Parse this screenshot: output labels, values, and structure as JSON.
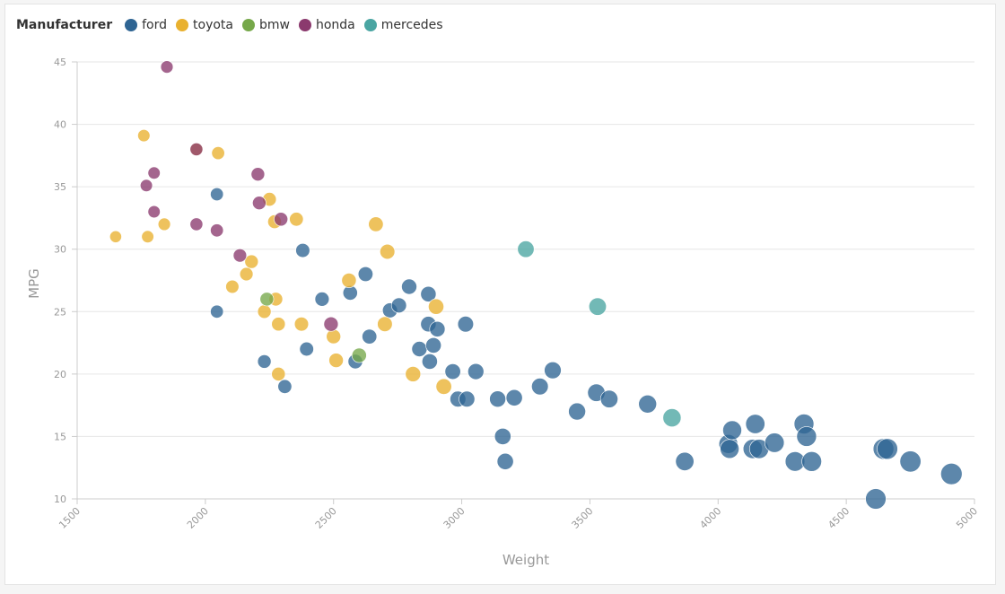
{
  "chart_data": {
    "type": "scatter",
    "title": "",
    "xlabel": "Weight",
    "ylabel": "MPG",
    "xlim": [
      1500,
      5000
    ],
    "ylim": [
      10,
      45
    ],
    "xticks": [
      1500,
      2000,
      2500,
      3000,
      3500,
      4000,
      4500,
      5000
    ],
    "yticks": [
      10,
      15,
      20,
      25,
      30,
      35,
      40,
      45
    ],
    "grid": "horizontal",
    "legend": {
      "title": "Manufacturer",
      "placement": "top-left"
    },
    "size_encodes": "weight",
    "series": [
      {
        "name": "ford",
        "color": "#2f6593",
        "points": [
          [
            2045,
            34.4
          ],
          [
            2045,
            25
          ],
          [
            2230,
            21
          ],
          [
            2310,
            19
          ],
          [
            2380,
            29.9
          ],
          [
            2395,
            22
          ],
          [
            2455,
            26
          ],
          [
            2565,
            26.5
          ],
          [
            2585,
            21
          ],
          [
            2625,
            28
          ],
          [
            2640,
            23
          ],
          [
            2720,
            25.1
          ],
          [
            2755,
            25.5
          ],
          [
            2795,
            27
          ],
          [
            2835,
            22
          ],
          [
            2870,
            24
          ],
          [
            2870,
            26.4
          ],
          [
            2875,
            21
          ],
          [
            2890,
            22.3
          ],
          [
            2905,
            23.6
          ],
          [
            2965,
            20.2
          ],
          [
            2985,
            18
          ],
          [
            3015,
            24
          ],
          [
            3020,
            18
          ],
          [
            3055,
            20.2
          ],
          [
            3140,
            18
          ],
          [
            3160,
            15
          ],
          [
            3170,
            13
          ],
          [
            3205,
            18.1
          ],
          [
            3305,
            19
          ],
          [
            3355,
            20.3
          ],
          [
            3450,
            17
          ],
          [
            3525,
            18.5
          ],
          [
            3575,
            18
          ],
          [
            3725,
            17.6
          ],
          [
            3870,
            13
          ],
          [
            4040,
            14.4
          ],
          [
            4045,
            14
          ],
          [
            4055,
            15.5
          ],
          [
            4135,
            14
          ],
          [
            4145,
            16
          ],
          [
            4160,
            14
          ],
          [
            4220,
            14.5
          ],
          [
            4300,
            13
          ],
          [
            4335,
            16
          ],
          [
            4345,
            15
          ],
          [
            4365,
            13
          ],
          [
            4615,
            10
          ],
          [
            4645,
            14
          ],
          [
            4660,
            14
          ],
          [
            4750,
            13
          ],
          [
            4910,
            12
          ]
        ]
      },
      {
        "name": "toyota",
        "color": "#e9b12f",
        "points": [
          [
            1650,
            31
          ],
          [
            1760,
            39.1
          ],
          [
            1775,
            31
          ],
          [
            1840,
            32
          ],
          [
            1965,
            38
          ],
          [
            2050,
            37.7
          ],
          [
            2105,
            27
          ],
          [
            2160,
            28
          ],
          [
            2180,
            29
          ],
          [
            2230,
            25
          ],
          [
            2250,
            34
          ],
          [
            2270,
            32.2
          ],
          [
            2275,
            26
          ],
          [
            2285,
            24
          ],
          [
            2285,
            20
          ],
          [
            2355,
            32.4
          ],
          [
            2375,
            24
          ],
          [
            2500,
            23
          ],
          [
            2510,
            21.1
          ],
          [
            2560,
            27.5
          ],
          [
            2665,
            32
          ],
          [
            2700,
            24
          ],
          [
            2710,
            29.8
          ],
          [
            2810,
            20
          ],
          [
            2900,
            25.4
          ],
          [
            2930,
            19
          ]
        ]
      },
      {
        "name": "bmw",
        "color": "#76a84a",
        "points": [
          [
            2240,
            26
          ],
          [
            2600,
            21.5
          ]
        ]
      },
      {
        "name": "honda",
        "color": "#8b3a6e",
        "points": [
          [
            1850,
            44.6
          ],
          [
            1770,
            35.1
          ],
          [
            1800,
            36.1
          ],
          [
            1800,
            33
          ],
          [
            1965,
            32
          ],
          [
            1965,
            38
          ],
          [
            2045,
            31.5
          ],
          [
            2135,
            29.5
          ],
          [
            2205,
            36
          ],
          [
            2210,
            33.7
          ],
          [
            2295,
            32.4
          ],
          [
            2490,
            24
          ]
        ]
      },
      {
        "name": "mercedes",
        "color": "#4aa5a2",
        "points": [
          [
            3250,
            30
          ],
          [
            3530,
            25.4
          ],
          [
            3820,
            16.5
          ]
        ]
      }
    ]
  }
}
